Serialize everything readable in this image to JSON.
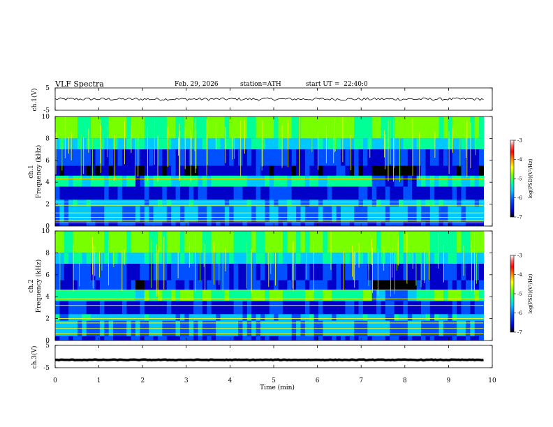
{
  "header": {
    "title": "VLF Spectra",
    "date": "Feb. 29, 2026",
    "station": "station=ATH",
    "start": "start UT =  22:40:0"
  },
  "chart_data": {
    "type": "heatmap",
    "xlabel": "Time (min)",
    "xlim": [
      0,
      10
    ],
    "x_ticks": [
      "0",
      "1",
      "2",
      "3",
      "4",
      "5",
      "6",
      "7",
      "8",
      "9",
      "10"
    ],
    "panels": [
      {
        "id": "ch1v",
        "ylabel": "ch.1(V)",
        "ylim": [
          -5,
          5
        ],
        "y_ticks": [
          "5",
          "-5"
        ],
        "kind": "waveform",
        "baseline": 0,
        "amplitude": 1.2
      },
      {
        "id": "ch1",
        "ylabel": "Frequency (kHz)",
        "ylabel2": "ch.1",
        "ylim": [
          0,
          10
        ],
        "y_ticks": [
          "10",
          "8",
          "6",
          "4",
          "2",
          "0"
        ],
        "kind": "spectrogram",
        "x_end": 9.8
      },
      {
        "id": "ch2",
        "ylabel": "Frequency (kHz)",
        "ylabel2": "ch.2",
        "ylim": [
          0,
          10
        ],
        "y_ticks": [
          "10",
          "8",
          "6",
          "4",
          "2",
          "0"
        ],
        "kind": "spectrogram",
        "x_end": 9.8
      },
      {
        "id": "ch3v",
        "ylabel": "ch.3(V)",
        "ylim": [
          -5,
          5
        ],
        "y_ticks": [
          "5",
          "-5"
        ],
        "kind": "waveform",
        "baseline": -1.5,
        "amplitude": 0.3
      }
    ],
    "colorbar": {
      "label": "log(PSD)(V²/Hz)",
      "ticks": [
        "-3",
        "-4",
        "-5",
        "-6",
        "-7"
      ],
      "range": [
        -7,
        -3
      ],
      "colors": [
        "#000000",
        "#0000c8",
        "#0050ff",
        "#00c8ff",
        "#00ff96",
        "#78ff00",
        "#ffff00",
        "#ff8c00",
        "#ff0000",
        "#ff6464",
        "#ffffff"
      ]
    }
  }
}
